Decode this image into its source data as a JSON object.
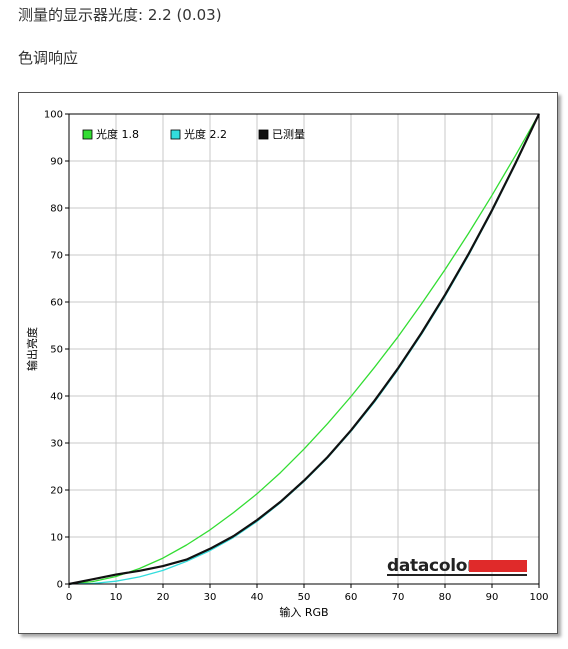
{
  "header": {
    "gamma_line": "测量的显示器光度:  2.2 (0.03)",
    "section_title": "色调响应"
  },
  "brand": {
    "logo_text": "datacolor",
    "bar_color": "#e02a2a"
  },
  "chart_data": {
    "type": "line",
    "xlabel": "输入 RGB",
    "ylabel": "输出亮度",
    "xlim": [
      0,
      100
    ],
    "ylim": [
      0,
      100
    ],
    "xticks": [
      0,
      10,
      20,
      30,
      40,
      50,
      60,
      70,
      80,
      90,
      100
    ],
    "yticks": [
      0,
      10,
      20,
      30,
      40,
      50,
      60,
      70,
      80,
      90,
      100
    ],
    "grid": true,
    "legend_position": "top-left",
    "series": [
      {
        "name": "光度 1.8",
        "color": "#33dd33",
        "x": [
          0,
          5,
          10,
          15,
          20,
          25,
          30,
          35,
          40,
          45,
          50,
          55,
          60,
          65,
          70,
          75,
          80,
          85,
          90,
          95,
          100
        ],
        "y": [
          0,
          0.5,
          1.6,
          3.3,
          5.5,
          8.3,
          11.5,
          15.2,
          19.2,
          23.7,
          28.7,
          34.1,
          39.9,
          46.1,
          52.6,
          59.6,
          66.9,
          74.6,
          82.7,
          91.2,
          100
        ]
      },
      {
        "name": "光度 2.2",
        "color": "#33dddd",
        "x": [
          0,
          5,
          10,
          15,
          20,
          25,
          30,
          35,
          40,
          45,
          50,
          55,
          60,
          65,
          70,
          75,
          80,
          85,
          90,
          95,
          100
        ],
        "y": [
          0,
          0.1,
          0.6,
          1.5,
          2.9,
          4.8,
          7.1,
          9.9,
          13.3,
          17.3,
          21.8,
          26.8,
          32.5,
          38.7,
          45.6,
          53.1,
          61.2,
          69.9,
          79.3,
          89.3,
          100
        ]
      },
      {
        "name": "已测量",
        "color": "#111111",
        "x": [
          0,
          5,
          10,
          15,
          20,
          25,
          30,
          35,
          40,
          45,
          50,
          55,
          60,
          65,
          70,
          75,
          80,
          85,
          90,
          95,
          100
        ],
        "y": [
          0,
          1.0,
          2.0,
          2.8,
          3.8,
          5.2,
          7.5,
          10.2,
          13.6,
          17.5,
          22.0,
          27.0,
          32.7,
          39.0,
          45.9,
          53.4,
          61.5,
          70.2,
          79.5,
          89.5,
          100
        ]
      }
    ]
  }
}
